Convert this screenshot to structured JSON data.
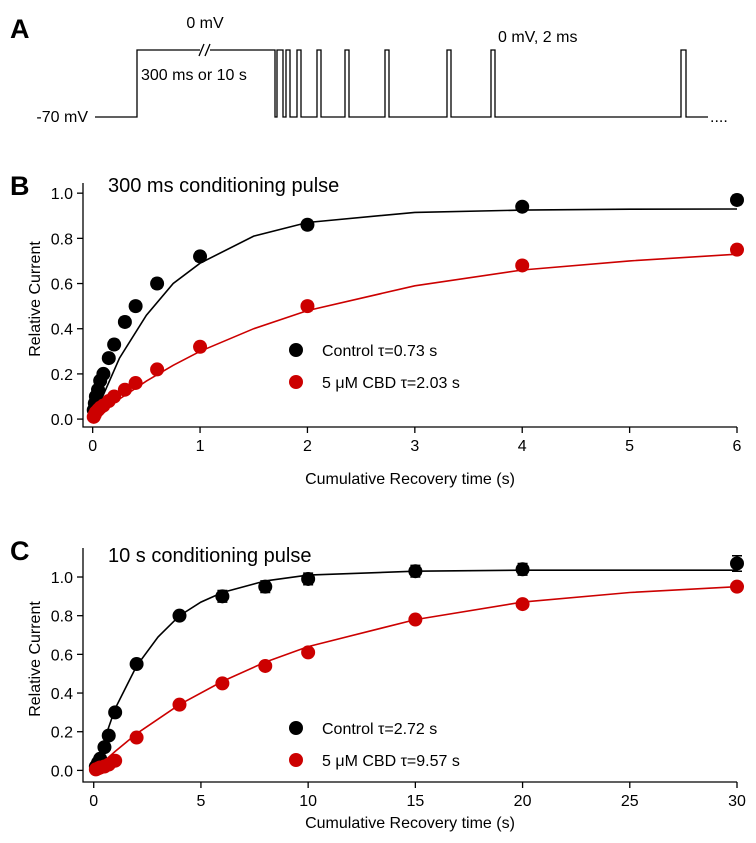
{
  "panel_a": {
    "label": "A",
    "top_voltage": "0 mV",
    "duration": "300 ms or 10 s",
    "holding": "-70 mV",
    "test_pulse": "0 mV, 2 ms",
    "continuation": "...."
  },
  "chart_data": [
    {
      "type": "scatter",
      "panel_label": "B",
      "title": "300 ms conditioning pulse",
      "x_label": "Cumulative Recovery time (s)",
      "y_label": "Relative Current",
      "x": [
        0.01,
        0.02,
        0.03,
        0.05,
        0.07,
        0.1,
        0.15,
        0.2,
        0.3,
        0.4,
        0.6,
        1,
        2,
        4,
        6
      ],
      "series": [
        {
          "name": "Control τ=0.73 s",
          "color": "#000000",
          "values": [
            0.04,
            0.07,
            0.1,
            0.13,
            0.17,
            0.2,
            0.27,
            0.33,
            0.43,
            0.5,
            0.6,
            0.72,
            0.86,
            0.94,
            0.97
          ],
          "errors": [
            0.01,
            0.01,
            0.01,
            0.01,
            0.015,
            0.015,
            0.015,
            0.02,
            0.02,
            0.02,
            0.02,
            0.02,
            0.02,
            0.015,
            0.02
          ]
        },
        {
          "name": "5 μM CBD τ=2.03 s",
          "color": "#cc0000",
          "values": [
            0.01,
            0.02,
            0.03,
            0.04,
            0.05,
            0.06,
            0.08,
            0.1,
            0.13,
            0.16,
            0.22,
            0.32,
            0.5,
            0.68,
            0.75
          ],
          "errors": [
            0.01,
            0.01,
            0.01,
            0.01,
            0.01,
            0.01,
            0.01,
            0.01,
            0.015,
            0.015,
            0.015,
            0.02,
            0.02,
            0.02,
            0.02
          ]
        }
      ],
      "fits": [
        {
          "color": "#000000",
          "x": [
            0,
            0.25,
            0.5,
            0.75,
            1,
            1.5,
            2,
            3,
            4,
            5,
            6
          ],
          "values": [
            0,
            0.27,
            0.46,
            0.6,
            0.69,
            0.81,
            0.87,
            0.915,
            0.925,
            0.929,
            0.93
          ]
        },
        {
          "color": "#cc0000",
          "x": [
            0,
            0.25,
            0.5,
            0.75,
            1,
            1.5,
            2,
            3,
            4,
            5,
            6
          ],
          "values": [
            0,
            0.089,
            0.168,
            0.238,
            0.3,
            0.4,
            0.48,
            0.59,
            0.66,
            0.7,
            0.73
          ]
        }
      ],
      "xlim": [
        -0.09,
        6
      ],
      "ylim": [
        -0.035,
        1.045
      ],
      "xticks": [
        0,
        1,
        2,
        3,
        4,
        5,
        6
      ],
      "yticks": [
        {
          "value": 0,
          "label": "0.0"
        },
        0.2,
        0.4,
        0.6,
        0.8,
        {
          "value": 1,
          "label": "1.0"
        }
      ]
    },
    {
      "type": "scatter",
      "panel_label": "C",
      "title": "10 s conditioning pulse",
      "x_label": "Cumulative Recovery time (s)",
      "y_label": "Relative Current",
      "x": [
        0.1,
        0.2,
        0.3,
        0.5,
        0.7,
        1,
        2,
        4,
        6,
        8,
        10,
        15,
        20,
        30
      ],
      "series": [
        {
          "name": "Control τ=2.72 s",
          "color": "#000000",
          "values": [
            0.02,
            0.04,
            0.06,
            0.12,
            0.18,
            0.3,
            0.55,
            0.8,
            0.9,
            0.95,
            0.99,
            1.03,
            1.04,
            1.07
          ],
          "errors": [
            0.01,
            0.01,
            0.01,
            0.015,
            0.02,
            0.02,
            0.02,
            0.02,
            0.03,
            0.03,
            0.03,
            0.03,
            0.03,
            0.04
          ]
        },
        {
          "name": "5 μM CBD τ=9.57 s",
          "color": "#cc0000",
          "values": [
            0.005,
            0.01,
            0.015,
            0.02,
            0.03,
            0.05,
            0.17,
            0.34,
            0.45,
            0.54,
            0.61,
            0.78,
            0.86,
            0.95
          ],
          "errors": [
            0.01,
            0.01,
            0.01,
            0.01,
            0.01,
            0.01,
            0.015,
            0.02,
            0.02,
            0.02,
            0.02,
            0.02,
            0.02,
            0.02
          ]
        }
      ],
      "fits": [
        {
          "color": "#000000",
          "x": [
            0,
            1,
            2,
            3,
            4,
            5,
            6,
            8,
            10,
            15,
            20,
            30
          ],
          "values": [
            0,
            0.32,
            0.54,
            0.69,
            0.8,
            0.87,
            0.92,
            0.98,
            1.01,
            1.03,
            1.035,
            1.035
          ]
        },
        {
          "color": "#cc0000",
          "x": [
            0,
            1,
            2,
            4,
            6,
            8,
            10,
            15,
            20,
            25,
            30
          ],
          "values": [
            0,
            0.098,
            0.19,
            0.34,
            0.46,
            0.56,
            0.64,
            0.78,
            0.87,
            0.92,
            0.95
          ]
        }
      ],
      "xlim": [
        -0.5,
        30
      ],
      "ylim": [
        -0.06,
        1.15
      ],
      "xticks": [
        0,
        5,
        10,
        15,
        20,
        25,
        30
      ],
      "yticks": [
        {
          "value": 0,
          "label": "0.0"
        },
        0.2,
        0.4,
        0.6,
        0.8,
        {
          "value": 1,
          "label": "1.0"
        }
      ]
    }
  ]
}
